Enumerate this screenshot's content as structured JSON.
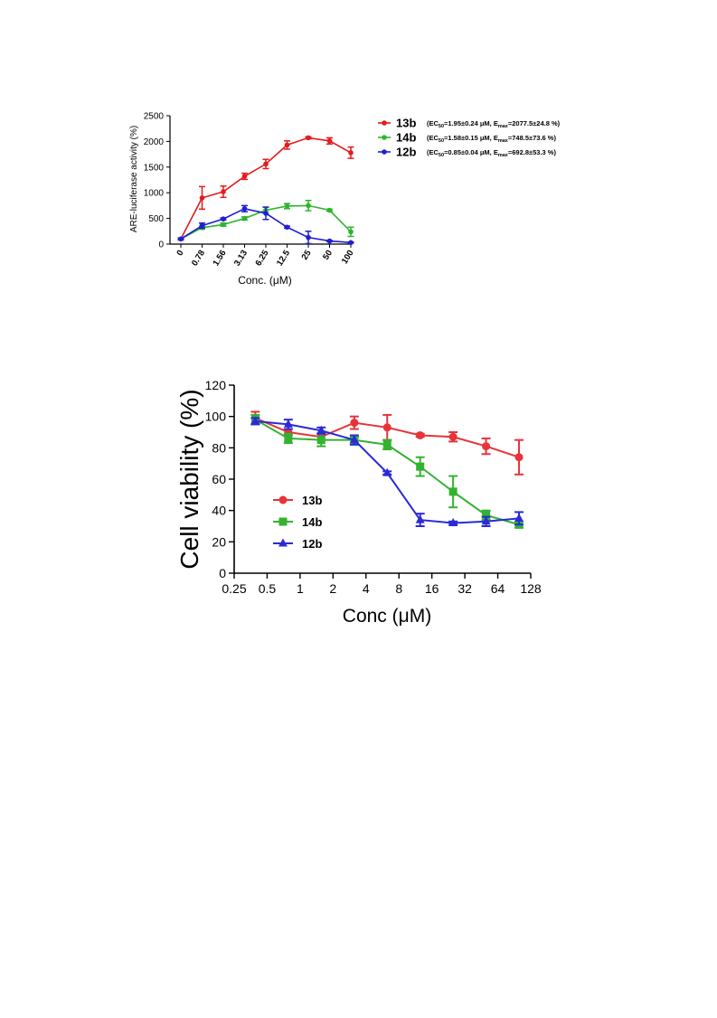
{
  "chart_data": [
    {
      "type": "line",
      "ylabel": "ARE-luciferase activity (%)",
      "xlabel": "Conc. (μM)",
      "categories": [
        "0",
        "0.78",
        "1.56",
        "3.13",
        "6.25",
        "12.5",
        "25",
        "50",
        "100"
      ],
      "ylim": [
        0,
        2500
      ],
      "yticks": [
        "0",
        "500",
        "1000",
        "1500",
        "2000",
        "2500"
      ],
      "legend_position": "right",
      "series": [
        {
          "name": "13b",
          "color": "#e41a1c",
          "values": [
            100,
            900,
            1020,
            1320,
            1560,
            1930,
            2070,
            2010,
            1780
          ],
          "errors": [
            20,
            220,
            110,
            60,
            90,
            80,
            20,
            60,
            110
          ],
          "annotation": {
            "prefix": "(EC",
            "sub1": "50",
            "mid1": "=1.95±0.24 μM, E",
            "sub2": "max",
            "mid2": "=2077.5±24.8 %)"
          }
        },
        {
          "name": "14b",
          "color": "#2db52d",
          "values": [
            100,
            320,
            380,
            500,
            660,
            740,
            750,
            660,
            240
          ],
          "errors": [
            15,
            30,
            30,
            30,
            60,
            50,
            100,
            20,
            90
          ],
          "annotation": {
            "prefix": "(EC",
            "sub1": "50",
            "mid1": "=1.58±0.15 μM, E",
            "sub2": "max",
            "mid2": "=748.5±73.6 %)"
          }
        },
        {
          "name": "12b",
          "color": "#1f1fd1",
          "values": [
            100,
            360,
            490,
            690,
            600,
            330,
            130,
            60,
            30
          ],
          "errors": [
            15,
            50,
            20,
            60,
            120,
            20,
            120,
            10,
            10
          ],
          "annotation": {
            "prefix": "(EC",
            "sub1": "50",
            "mid1": "=0.85±0.04 μM, E",
            "sub2": "max",
            "mid2": "=692.8±53.3 %)"
          }
        }
      ]
    },
    {
      "type": "line",
      "ylabel": "Cell viability (%)",
      "xlabel": "Conc (μM)",
      "xscale": "log2",
      "xlim": [
        0.25,
        128
      ],
      "xticks": [
        "0.25",
        "0.5",
        "1",
        "2",
        "4",
        "8",
        "16",
        "32",
        "64",
        "128"
      ],
      "ylim": [
        0,
        120
      ],
      "yticks": [
        "0",
        "20",
        "40",
        "60",
        "80",
        "100",
        "120"
      ],
      "legend_position": "lower-left",
      "series": [
        {
          "name": "13b",
          "color": "#e8333a",
          "marker": "circle",
          "x": [
            0.39,
            0.78,
            1.56,
            3.13,
            6.25,
            12.5,
            25,
            50,
            100
          ],
          "y": [
            99,
            90,
            87,
            96,
            93,
            88,
            87,
            81,
            74
          ],
          "errors": [
            4,
            2,
            2,
            4,
            8,
            1,
            3,
            5,
            11
          ]
        },
        {
          "name": "14b",
          "color": "#33b22f",
          "marker": "square",
          "x": [
            0.39,
            0.78,
            1.56,
            3.13,
            6.25,
            12.5,
            25,
            50,
            100
          ],
          "y": [
            98,
            86,
            85,
            85,
            82,
            68,
            52,
            37,
            31
          ],
          "errors": [
            3,
            3,
            4,
            2,
            3,
            6,
            10,
            3,
            2
          ]
        },
        {
          "name": "12b",
          "color": "#2a2ad8",
          "marker": "triangle",
          "x": [
            0.39,
            0.78,
            1.56,
            3.13,
            6.25,
            12.5,
            25,
            50,
            100
          ],
          "y": [
            97,
            95,
            91,
            85,
            64,
            34,
            32,
            33,
            35
          ],
          "errors": [
            2,
            3,
            2,
            3,
            1,
            4,
            1,
            3,
            4
          ]
        }
      ]
    }
  ]
}
